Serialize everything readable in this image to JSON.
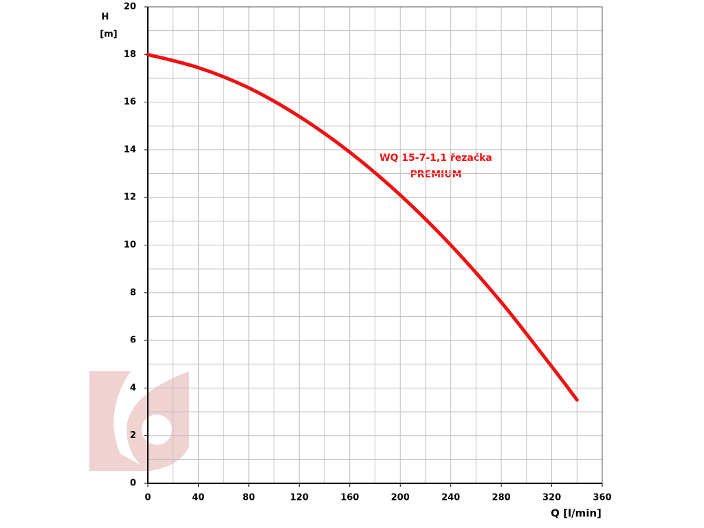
{
  "chart_data": {
    "type": "line",
    "y_label_1": "H",
    "y_label_2": "[m]",
    "x_label": "Q [l/min]",
    "annotation_1": "WQ 15-7-1,1 řezačka",
    "annotation_2": "PREMIUM",
    "x": [
      0,
      40,
      80,
      120,
      160,
      200,
      240,
      280,
      320,
      340
    ],
    "series": [
      {
        "name": "WQ 15-7-1,1 řezačka PREMIUM",
        "color": "#ee1111",
        "values": [
          18,
          17.45,
          16.6,
          15.4,
          13.9,
          12.1,
          10.0,
          7.6,
          4.9,
          3.5
        ]
      }
    ],
    "xlim": [
      0,
      360
    ],
    "xticks": [
      0,
      40,
      80,
      120,
      160,
      200,
      240,
      280,
      320,
      360
    ],
    "ylim": [
      0,
      20
    ],
    "yticks": [
      0,
      2,
      4,
      6,
      8,
      10,
      12,
      14,
      16,
      18,
      20
    ],
    "grid": true
  }
}
